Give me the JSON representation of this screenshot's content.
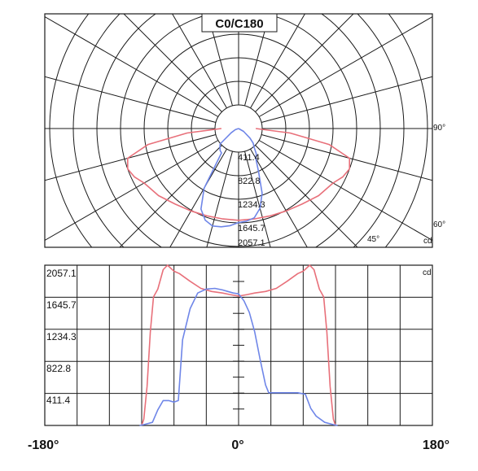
{
  "colors": {
    "c0_c180": "#e8707a",
    "c90_c270": "#6f86e8",
    "grid": "#1a1a1a",
    "frame": "#1a1a1a"
  },
  "chart_data": [
    {
      "type": "polar",
      "title": "C0/C180",
      "unit": "cd",
      "radial_ticks": [
        411.4,
        822.8,
        1234.3,
        1645.7,
        2057.1
      ],
      "angle_labels": [
        "90°",
        "60°",
        "45°"
      ],
      "rmax": 2057.1,
      "series": [
        {
          "color_key": "c0_c180",
          "points": [
            [
              -90,
              300
            ],
            [
              -85,
              900
            ],
            [
              -80,
              1600
            ],
            [
              -75,
              2000
            ],
            [
              -70,
              2057
            ],
            [
              -65,
              2000
            ],
            [
              -60,
              1900
            ],
            [
              -50,
              1820
            ],
            [
              -40,
              1720
            ],
            [
              -30,
              1660
            ],
            [
              -20,
              1620
            ],
            [
              -10,
              1600
            ],
            [
              0,
              1600
            ],
            [
              10,
              1600
            ],
            [
              20,
              1620
            ],
            [
              30,
              1660
            ],
            [
              40,
              1720
            ],
            [
              50,
              1820
            ],
            [
              60,
              1900
            ],
            [
              65,
              2000
            ],
            [
              70,
              2057
            ],
            [
              75,
              2000
            ],
            [
              80,
              1600
            ],
            [
              85,
              900
            ],
            [
              90,
              300
            ]
          ]
        },
        {
          "color_key": "c90_c270",
          "points": [
            [
              -90,
              0
            ],
            [
              -70,
              60
            ],
            [
              -60,
              150
            ],
            [
              -50,
              420
            ],
            [
              -45,
              460
            ],
            [
              -40,
              500
            ],
            [
              -35,
              520
            ],
            [
              -30,
              1200
            ],
            [
              -25,
              1550
            ],
            [
              -20,
              1700
            ],
            [
              -15,
              1760
            ],
            [
              -10,
              1740
            ],
            [
              -5,
              1700
            ],
            [
              0,
              1640
            ],
            [
              5,
              1620
            ],
            [
              10,
              1580
            ],
            [
              15,
              1440
            ],
            [
              20,
              1200
            ],
            [
              25,
              820
            ],
            [
              30,
              600
            ],
            [
              35,
              540
            ],
            [
              40,
              420
            ],
            [
              45,
              360
            ],
            [
              50,
              260
            ],
            [
              60,
              100
            ],
            [
              90,
              0
            ]
          ]
        }
      ]
    },
    {
      "type": "line",
      "unit": "cd",
      "x_tick_labels": [
        "-180°",
        "0°",
        "180°"
      ],
      "y_tick_labels": [
        "2057.1",
        "1645.7",
        "1234.3",
        "822.8",
        "411.4"
      ],
      "xlim": [
        -180,
        180
      ],
      "ylim": [
        0,
        2057.1
      ],
      "y_ticks": [
        411.4,
        822.8,
        1234.3,
        1645.7,
        2057.1
      ],
      "series": [
        {
          "color_key": "c0_c180",
          "points": [
            [
              -90,
              0
            ],
            [
              -88,
              80
            ],
            [
              -85,
              500
            ],
            [
              -82,
              1200
            ],
            [
              -79,
              1650
            ],
            [
              -75,
              1750
            ],
            [
              -70,
              2000
            ],
            [
              -66,
              2057
            ],
            [
              -60,
              1980
            ],
            [
              -55,
              1950
            ],
            [
              -45,
              1850
            ],
            [
              -35,
              1760
            ],
            [
              -25,
              1720
            ],
            [
              -15,
              1700
            ],
            [
              -8,
              1680
            ],
            [
              0,
              1660
            ],
            [
              8,
              1680
            ],
            [
              15,
              1700
            ],
            [
              25,
              1720
            ],
            [
              35,
              1760
            ],
            [
              45,
              1850
            ],
            [
              55,
              1950
            ],
            [
              60,
              1980
            ],
            [
              66,
              2057
            ],
            [
              70,
              2000
            ],
            [
              75,
              1750
            ],
            [
              79,
              1650
            ],
            [
              82,
              1200
            ],
            [
              85,
              500
            ],
            [
              88,
              80
            ],
            [
              90,
              0
            ]
          ]
        },
        {
          "color_key": "c90_c270",
          "points": [
            [
              -92,
              0
            ],
            [
              -88,
              10
            ],
            [
              -80,
              40
            ],
            [
              -75,
              200
            ],
            [
              -70,
              320
            ],
            [
              -65,
              320
            ],
            [
              -60,
              300
            ],
            [
              -56,
              320
            ],
            [
              -52,
              1100
            ],
            [
              -45,
              1500
            ],
            [
              -38,
              1700
            ],
            [
              -30,
              1750
            ],
            [
              -22,
              1760
            ],
            [
              -15,
              1740
            ],
            [
              -10,
              1720
            ],
            [
              -5,
              1700
            ],
            [
              0,
              1690
            ],
            [
              5,
              1600
            ],
            [
              10,
              1450
            ],
            [
              15,
              1200
            ],
            [
              20,
              850
            ],
            [
              25,
              520
            ],
            [
              28,
              420
            ],
            [
              35,
              420
            ],
            [
              45,
              420
            ],
            [
              55,
              420
            ],
            [
              62,
              400
            ],
            [
              67,
              220
            ],
            [
              72,
              120
            ],
            [
              80,
              40
            ],
            [
              88,
              10
            ],
            [
              92,
              0
            ]
          ]
        }
      ]
    }
  ]
}
